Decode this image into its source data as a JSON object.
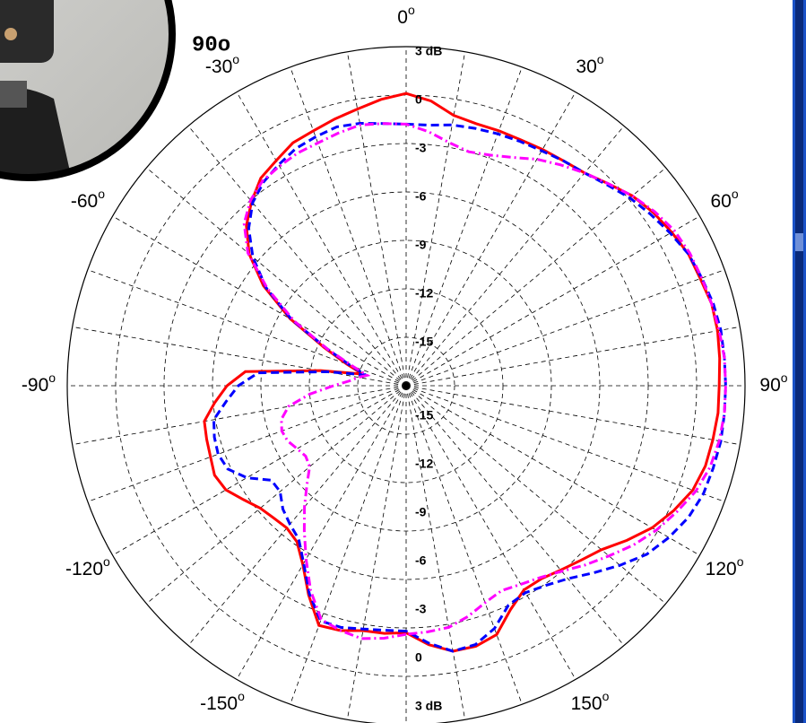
{
  "chart_data": {
    "type": "polar",
    "degree_symbol": "o",
    "inset_label": "90o",
    "rlim": [
      -18,
      3
    ],
    "rticks": [
      {
        "value": 3,
        "label": "3 dB"
      },
      0,
      -3,
      -6,
      -9,
      -12,
      -15
    ],
    "thetaticks": [
      0,
      30,
      60,
      90,
      120,
      150,
      -30,
      -60,
      -90,
      -120,
      -150
    ],
    "theta_grid": [
      -180,
      -170,
      -160,
      -150,
      -140,
      -130,
      -120,
      -110,
      -100,
      -90,
      -80,
      -70,
      -60,
      -50,
      -40,
      -30,
      -20,
      -10,
      0,
      10,
      20,
      30,
      40,
      50,
      60,
      70,
      80,
      90,
      100,
      110,
      120,
      130,
      140,
      150,
      160,
      170
    ],
    "grid": true,
    "x": [
      -180,
      -175,
      -170,
      -165,
      -160,
      -155,
      -150,
      -145,
      -140,
      -135,
      -130,
      -125,
      -120,
      -115,
      -110,
      -105,
      -100,
      -95,
      -90,
      -85,
      -80,
      -75,
      -70,
      -65,
      -60,
      -55,
      -50,
      -45,
      -40,
      -35,
      -30,
      -25,
      -20,
      -15,
      -10,
      -5,
      0,
      5,
      10,
      15,
      20,
      25,
      30,
      35,
      40,
      45,
      50,
      55,
      60,
      65,
      70,
      75,
      80,
      85,
      90,
      95,
      100,
      105,
      110,
      115,
      120,
      125,
      130,
      135,
      140,
      145,
      150,
      155,
      160,
      165,
      170,
      175
    ],
    "series": [
      {
        "color": "#ff0000",
        "dash": "solid",
        "values": [
          -2.7,
          -2.6,
          -2.6,
          -2.3,
          -2.2,
          -3.7,
          -5.2,
          -6.2,
          -6.5,
          -6.4,
          -6.2,
          -5.7,
          -5.1,
          -4.9,
          -5.1,
          -5.2,
          -5.3,
          -6.1,
          -6.9,
          -8,
          -12.6,
          -15.2,
          -14.1,
          -12.4,
          -9.7,
          -7.2,
          -5.3,
          -4,
          -3.1,
          -2.3,
          -1.9,
          -1.4,
          -1.2,
          -0.9,
          -0.6,
          -0.2,
          0.1,
          -0.3,
          -1,
          -1.2,
          -1.2,
          -1.2,
          -1.1,
          -1,
          -0.8,
          -0.3,
          0.3,
          0.7,
          1,
          1.3,
          1.4,
          1.6,
          1.6,
          1.5,
          1.4,
          1.4,
          1.3,
          1.2,
          0.9,
          0.3,
          -0.4,
          -1.3,
          -2.2,
          -2.7,
          -3.1,
          -3.4,
          -3.4,
          -2.7,
          -1.6,
          -1.3,
          -1.3,
          -1.9
        ]
      },
      {
        "color": "#0000ff",
        "dash": "dashed",
        "values": [
          -2.8,
          -2.8,
          -2.7,
          -2.5,
          -2.5,
          -3.8,
          -5.3,
          -6.4,
          -6.8,
          -7.2,
          -7.8,
          -7.8,
          -6.6,
          -5.8,
          -5.6,
          -5.7,
          -5.9,
          -6.8,
          -7.6,
          -8.8,
          -13,
          -15.4,
          -14.3,
          -12.6,
          -9.8,
          -7.4,
          -5.6,
          -4.2,
          -3.2,
          -2.6,
          -2.2,
          -1.8,
          -1.6,
          -1.4,
          -1.5,
          -1.7,
          -1.8,
          -1.8,
          -1.6,
          -1.5,
          -1.4,
          -1.3,
          -1.2,
          -1,
          -0.8,
          -0.4,
          0.1,
          0.5,
          0.9,
          1.3,
          1.5,
          1.7,
          1.8,
          1.8,
          1.8,
          1.8,
          1.8,
          1.7,
          1.6,
          1.3,
          0.8,
          0.2,
          -0.7,
          -1.6,
          -2.4,
          -2.9,
          -3.2,
          -3,
          -2,
          -1.4,
          -1.3,
          -2
        ]
      },
      {
        "color": "#ff00ff",
        "dash": "dashdot",
        "values": [
          -2.6,
          -2.3,
          -2.1,
          -2.3,
          -2.6,
          -4,
          -5.6,
          -7,
          -8.2,
          -9.3,
          -10.2,
          -10.4,
          -10.2,
          -9.9,
          -9.8,
          -10,
          -10.6,
          -12,
          -13.5,
          -14.5,
          -15,
          -15.5,
          -14.5,
          -12.6,
          -10,
          -7.5,
          -5.2,
          -3.8,
          -3,
          -2.5,
          -2.3,
          -2.1,
          -2,
          -1.8,
          -1.6,
          -1.7,
          -1.8,
          -2.2,
          -2.7,
          -3,
          -2.8,
          -2.4,
          -1.8,
          -1.3,
          -0.8,
          -0.3,
          0.3,
          0.8,
          1.2,
          1.4,
          1.5,
          1.6,
          1.7,
          1.8,
          1.8,
          1.8,
          1.7,
          1.5,
          1.1,
          0.5,
          -0.1,
          -0.8,
          -1.6,
          -2.3,
          -3,
          -3.5,
          -3.8,
          -4,
          -3.7,
          -3.2,
          -2.8,
          -2.7
        ]
      }
    ]
  }
}
